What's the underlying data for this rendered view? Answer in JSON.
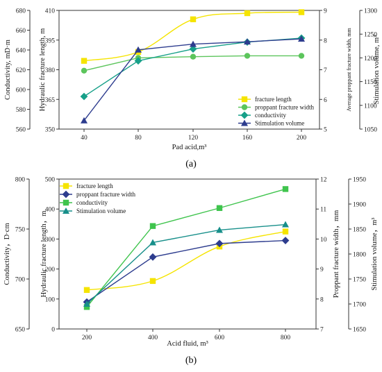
{
  "chart_data": [
    {
      "type": "line",
      "panel_label": "(a)",
      "x": [
        40,
        80,
        120,
        160,
        200
      ],
      "xlabel": "Pad acid,m³",
      "axes": {
        "conductivity": {
          "label": "Conductivity, mD·m",
          "ticks": [
            560,
            580,
            600,
            620,
            640,
            660,
            680
          ],
          "range": [
            560,
            680
          ]
        },
        "fracture_length": {
          "label": "Hydraulic fracture length, m",
          "ticks": [
            350,
            365,
            380,
            395,
            410
          ],
          "range": [
            350,
            410
          ]
        },
        "width": {
          "label": "Average proppant fracture width, mm",
          "ticks": [
            5,
            6,
            7,
            8,
            9
          ],
          "range": [
            5,
            9
          ]
        },
        "volume": {
          "label": "Stimulation volume, m³",
          "ticks": [
            1050,
            1100,
            1150,
            1200,
            1250,
            1300
          ],
          "range": [
            1050,
            1300
          ]
        }
      },
      "xticks": [
        "40",
        "80",
        "120",
        "160",
        "200"
      ],
      "legend_position": "bottom-right",
      "series": [
        {
          "name": "fracture length",
          "axis": "fracture_length",
          "marker": "square",
          "color": "#f5e400",
          "values": [
            384.5,
            389,
            405.5,
            408.6,
            409.1
          ]
        },
        {
          "name": "proppant fracture width",
          "axis": "width",
          "marker": "circle",
          "color": "#5cc55c",
          "values": [
            6.97,
            7.4,
            7.44,
            7.47,
            7.47
          ]
        },
        {
          "name": "conductivity",
          "axis": "conductivity",
          "marker": "diamond",
          "color": "#17a089",
          "values": [
            593,
            629,
            641,
            648,
            652
          ]
        },
        {
          "name": "Stimulation volume",
          "axis": "volume",
          "marker": "triangle",
          "color": "#2d3c8e",
          "values": [
            1068,
            1217,
            1229,
            1234,
            1240
          ]
        }
      ]
    },
    {
      "type": "line",
      "panel_label": "(b)",
      "x": [
        200,
        400,
        600,
        800
      ],
      "xlabel": "Acid fluid, m³",
      "axes": {
        "conductivity": {
          "label": "Conductivity，D·cm",
          "ticks": [
            650,
            700,
            750,
            800
          ],
          "range": [
            650,
            800
          ]
        },
        "fracture_length": {
          "label": "Hydraulic fracture length，m",
          "ticks": [
            0,
            100,
            200,
            300,
            400,
            500
          ],
          "range": [
            0,
            500
          ]
        },
        "width": {
          "label": "Proppant fracture width，mm",
          "ticks": [
            7,
            8,
            9,
            10,
            11,
            12
          ],
          "range": [
            7,
            12
          ]
        },
        "volume": {
          "label": "Stimulation volume，m³",
          "ticks": [
            1650,
            1700,
            1750,
            1800,
            1850,
            1900,
            1950
          ],
          "range": [
            1650,
            1950
          ]
        }
      },
      "xticks": [
        "200",
        "400",
        "600",
        "800"
      ],
      "legend_position": "top-left",
      "series": [
        {
          "name": "fracture length",
          "axis": "fracture_length",
          "marker": "square",
          "color": "#f5e400",
          "values": [
            130,
            160,
            275,
            325
          ]
        },
        {
          "name": "proppant fracture width",
          "axis": "width",
          "marker": "diamond",
          "color": "#2d3c8e",
          "values": [
            7.9,
            9.4,
            9.85,
            9.95
          ]
        },
        {
          "name": "conductivity",
          "axis": "conductivity",
          "marker": "square",
          "color": "#3fc44d",
          "values": [
            672,
            753,
            771,
            790
          ]
        },
        {
          "name": "Stimulation volume",
          "axis": "volume",
          "marker": "triangle",
          "color": "#178f8a",
          "values": [
            1700,
            1823,
            1848,
            1859
          ]
        }
      ]
    }
  ]
}
